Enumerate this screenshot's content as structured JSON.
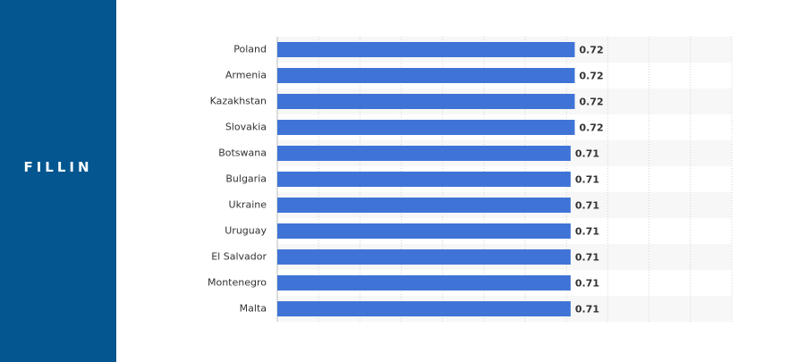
{
  "brand": "FILLIN",
  "chart_data": {
    "type": "bar",
    "orientation": "horizontal",
    "categories": [
      "Poland",
      "Armenia",
      "Kazakhstan",
      "Slovakia",
      "Botswana",
      "Bulgaria",
      "Ukraine",
      "Uruguay",
      "El Salvador",
      "Montenegro",
      "Malta"
    ],
    "values": [
      0.72,
      0.72,
      0.72,
      0.72,
      0.71,
      0.71,
      0.71,
      0.71,
      0.71,
      0.71,
      0.71
    ],
    "color": "#3f74d6",
    "xlim": [
      0,
      1.1
    ],
    "xticks": [
      0.1,
      0.2,
      0.3,
      0.4,
      0.5,
      0.6,
      0.7,
      0.8,
      0.9,
      1,
      1.1
    ],
    "grid": true
  }
}
